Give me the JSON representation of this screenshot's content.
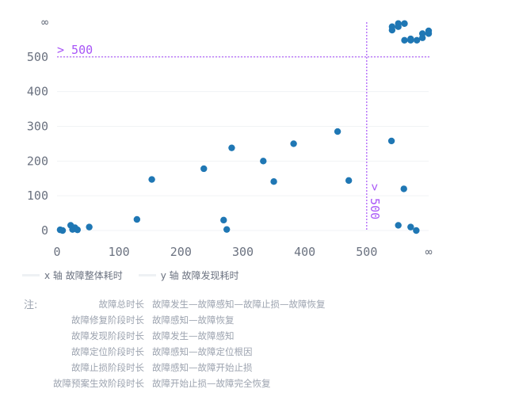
{
  "chart_data": {
    "type": "scatter",
    "x_ticks": [
      "0",
      "100",
      "200",
      "300",
      "400",
      "500",
      "∞"
    ],
    "y_ticks": [
      "0",
      "100",
      "200",
      "300",
      "400",
      "500",
      "∞"
    ],
    "xlim": [
      0,
      600
    ],
    "ylim": [
      0,
      600
    ],
    "threshold": 500,
    "threshold_label_x": "> 500",
    "threshold_label_y": "> 500",
    "grid": true,
    "series": [
      {
        "color": "#1f77b4",
        "points": [
          {
            "x": 5,
            "y": 2
          },
          {
            "x": 9,
            "y": 0
          },
          {
            "x": 22,
            "y": 15
          },
          {
            "x": 25,
            "y": 3
          },
          {
            "x": 29,
            "y": 8
          },
          {
            "x": 33,
            "y": 2
          },
          {
            "x": 52,
            "y": 10
          },
          {
            "x": 129,
            "y": 32
          },
          {
            "x": 153,
            "y": 147
          },
          {
            "x": 237,
            "y": 178
          },
          {
            "x": 269,
            "y": 30
          },
          {
            "x": 274,
            "y": 3
          },
          {
            "x": 282,
            "y": 238
          },
          {
            "x": 333,
            "y": 200
          },
          {
            "x": 350,
            "y": 141
          },
          {
            "x": 382,
            "y": 250
          },
          {
            "x": 453,
            "y": 285
          },
          {
            "x": 471,
            "y": 144
          },
          {
            "x": 540,
            "y": 258
          },
          {
            "x": 560,
            "y": 120
          },
          {
            "x": 551,
            "y": 15
          },
          {
            "x": 571,
            "y": 10
          },
          {
            "x": 580,
            "y": 0
          },
          {
            "x": 541,
            "y": 587
          },
          {
            "x": 541,
            "y": 577
          },
          {
            "x": 551,
            "y": 596
          },
          {
            "x": 551,
            "y": 587
          },
          {
            "x": 561,
            "y": 596
          },
          {
            "x": 561,
            "y": 548
          },
          {
            "x": 571,
            "y": 552
          },
          {
            "x": 571,
            "y": 548
          },
          {
            "x": 581,
            "y": 548
          },
          {
            "x": 590,
            "y": 567
          },
          {
            "x": 590,
            "y": 555
          },
          {
            "x": 600,
            "y": 575
          },
          {
            "x": 600,
            "y": 567
          }
        ]
      }
    ]
  },
  "legend": [
    {
      "label": "x 轴 故障整体耗时"
    },
    {
      "label": "y 轴 故障发现耗时"
    }
  ],
  "notes": {
    "title": "注:",
    "rows": [
      {
        "key": "故障总时长",
        "value": "故障发生—故障感知—故障止损—故障恢复"
      },
      {
        "key": "故障修复阶段时长",
        "value": "故障感知—故障恢复"
      },
      {
        "key": "故障发现阶段时长",
        "value": "故障发生—故障感知"
      },
      {
        "key": "故障定位阶段时长",
        "value": "故障感知—故障定位根因"
      },
      {
        "key": "故障止损阶段时长",
        "value": "故障感知—故障开始止损"
      },
      {
        "key": "故障预案生效阶段时长",
        "value": "故障开始止损—故障完全恢复"
      }
    ]
  }
}
